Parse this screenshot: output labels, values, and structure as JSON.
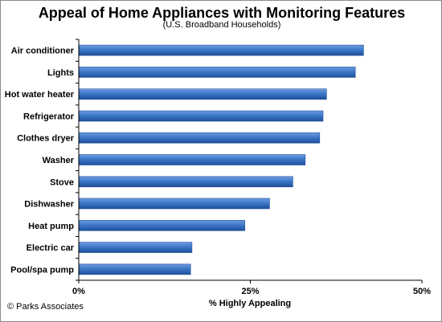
{
  "colors": {
    "bar": "#3d78c8",
    "bar_dark": "#1f4f99",
    "axis": "#000000"
  },
  "chart_data": {
    "type": "bar",
    "orientation": "horizontal",
    "title": "Appeal of Home Appliances with Monitoring Features",
    "subtitle": "(U.S. Broadband Households)",
    "xlabel": "% Highly Appealing",
    "ylabel": "",
    "categories": [
      "Air conditioner",
      "Lights",
      "Hot water heater",
      "Refrigerator",
      "Clothes dryer",
      "Washer",
      "Stove",
      "Dishwasher",
      "Heat pump",
      "Electric car",
      "Pool/spa pump"
    ],
    "values": [
      41.5,
      40.3,
      36.1,
      35.6,
      35.1,
      33.0,
      31.2,
      27.8,
      24.2,
      16.5,
      16.3
    ],
    "unit": "%",
    "xlim": [
      0,
      50
    ],
    "xticks": [
      0,
      25,
      50
    ],
    "xtick_labels": [
      "0%",
      "25%",
      "50%"
    ],
    "grid": false,
    "legend": "none"
  },
  "credit": "© Parks Associates"
}
